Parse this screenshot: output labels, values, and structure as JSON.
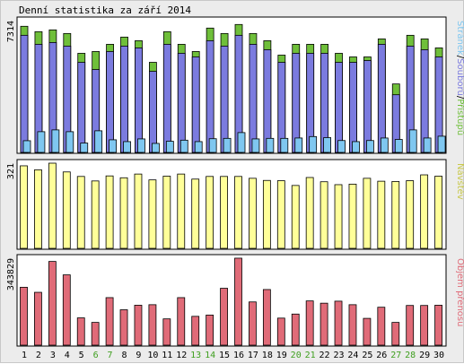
{
  "title": "Denní statistika za září 2014",
  "chart_data": [
    {
      "type": "bar",
      "panel": "top",
      "max_label": "7314",
      "legend": "Stránek/Souborů/Přístupů",
      "legend_parts": [
        "Stránek",
        "Souborů",
        "Přístupů"
      ],
      "colors": {
        "pristupu": "#6fbf3a",
        "souboru": "#7b7bdf",
        "stranek": "#7fc7f0"
      },
      "categories": [
        "1",
        "2",
        "3",
        "4",
        "5",
        "6",
        "7",
        "8",
        "9",
        "10",
        "11",
        "12",
        "13",
        "14",
        "15",
        "16",
        "17",
        "18",
        "19",
        "20",
        "21",
        "22",
        "23",
        "24",
        "25",
        "26",
        "27",
        "28",
        "29",
        "30"
      ],
      "series": [
        {
          "name": "Přístupů",
          "values": [
            7000,
            6700,
            6800,
            6600,
            5500,
            5600,
            6000,
            6400,
            6200,
            5000,
            6700,
            6000,
            5600,
            6900,
            6600,
            7100,
            6600,
            6200,
            5400,
            6000,
            6000,
            6000,
            5500,
            5300,
            5300,
            6300,
            3800,
            6500,
            6300,
            5800
          ]
        },
        {
          "name": "Souborů",
          "values": [
            6500,
            6000,
            6100,
            5900,
            5000,
            4600,
            5600,
            5900,
            5800,
            4500,
            6000,
            5500,
            5300,
            6200,
            5900,
            6500,
            6000,
            5700,
            5000,
            5500,
            5500,
            5500,
            5000,
            5000,
            5100,
            6000,
            3200,
            5900,
            5700,
            5300
          ]
        },
        {
          "name": "Stránek",
          "values": [
            650,
            1150,
            1250,
            1150,
            520,
            1200,
            700,
            600,
            750,
            500,
            620,
            680,
            600,
            760,
            780,
            1100,
            750,
            780,
            780,
            800,
            880,
            820,
            660,
            600,
            660,
            800,
            720,
            1250,
            800,
            900
          ]
        }
      ],
      "ylim": [
        0,
        7314
      ]
    },
    {
      "type": "bar",
      "panel": "middle",
      "max_label": "321",
      "legend": "Návštěv",
      "color": "#ffff99",
      "categories": [
        "1",
        "2",
        "3",
        "4",
        "5",
        "6",
        "7",
        "8",
        "9",
        "10",
        "11",
        "12",
        "13",
        "14",
        "15",
        "16",
        "17",
        "18",
        "19",
        "20",
        "21",
        "22",
        "23",
        "24",
        "25",
        "26",
        "27",
        "28",
        "29",
        "30"
      ],
      "series": [
        {
          "name": "Návštěv",
          "values": [
            311,
            296,
            321,
            288,
            271,
            254,
            273,
            266,
            280,
            258,
            272,
            280,
            261,
            271,
            271,
            271,
            264,
            256,
            255,
            237,
            267,
            251,
            240,
            242,
            264,
            253,
            252,
            255,
            277,
            272
          ]
        }
      ],
      "ylim": [
        0,
        321
      ]
    },
    {
      "type": "bar",
      "panel": "bottom",
      "max_label": "343829",
      "legend": "Objem přenosu",
      "color": "#e06b78",
      "categories": [
        "1",
        "2",
        "3",
        "4",
        "5",
        "6",
        "7",
        "8",
        "9",
        "10",
        "11",
        "12",
        "13",
        "14",
        "15",
        "16",
        "17",
        "18",
        "19",
        "20",
        "21",
        "22",
        "23",
        "24",
        "25",
        "26",
        "27",
        "28",
        "29",
        "30"
      ],
      "series": [
        {
          "name": "Objem přenosu",
          "values": [
            229000,
            209000,
            331000,
            278000,
            108000,
            90000,
            188000,
            140000,
            158000,
            160000,
            104000,
            188000,
            114000,
            119000,
            225000,
            344000,
            171000,
            220000,
            107000,
            123000,
            175000,
            166000,
            174000,
            160000,
            106000,
            150000,
            90000,
            157000,
            157000,
            158000
          ]
        }
      ],
      "ylim": [
        0,
        343829
      ]
    }
  ],
  "weekend_days": [
    "6",
    "7",
    "13",
    "14",
    "20",
    "21",
    "27",
    "28"
  ],
  "day_label_colors": {
    "weekday": "#000000",
    "weekend": "#3f9f1f"
  }
}
